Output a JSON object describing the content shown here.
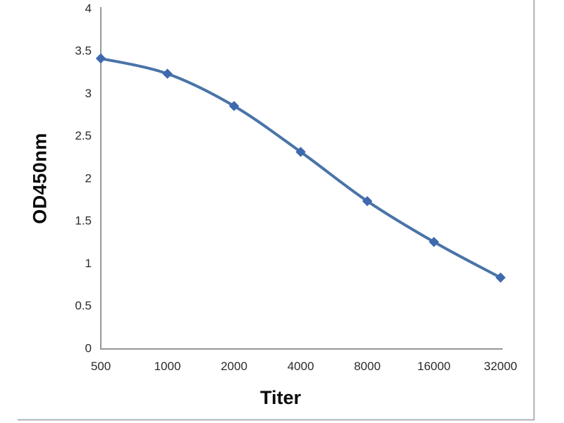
{
  "figure": {
    "background": "#ffffff",
    "border_color": "#aeb2b5"
  },
  "chart_data": {
    "type": "line",
    "title": "",
    "xlabel": "Titer",
    "ylabel": "OD450nm",
    "categories": [
      "500",
      "1000",
      "2000",
      "4000",
      "8000",
      "16000",
      "32000"
    ],
    "series": [
      {
        "name": "OD450nm",
        "values": [
          3.42,
          3.24,
          2.86,
          2.32,
          1.74,
          1.26,
          0.84
        ],
        "line_color": "#4a74a8",
        "marker": "diamond",
        "marker_color": "#3f69ae",
        "smoothed": true
      }
    ],
    "ylim": [
      0,
      4
    ],
    "yticks": [
      0,
      0.5,
      1,
      1.5,
      2,
      2.5,
      3,
      3.5,
      4
    ],
    "grid": false,
    "legend_position": "none",
    "axis_color": "#94989c",
    "tick_label_color": "#2b2b2b"
  }
}
